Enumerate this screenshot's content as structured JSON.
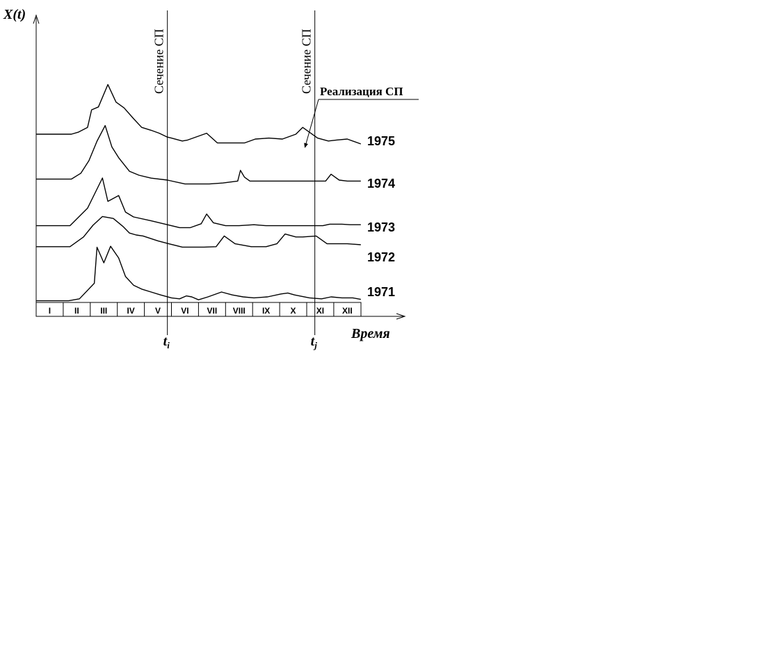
{
  "chart_data": {
    "type": "line",
    "y_axis_label": "X(t)",
    "x_axis_label": "Время",
    "months": [
      "I",
      "II",
      "III",
      "IV",
      "V",
      "VI",
      "VII",
      "VIII",
      "IX",
      "X",
      "XI",
      "XII"
    ],
    "sections": [
      {
        "label": "Сечение СП",
        "time_label_main": "t",
        "time_label_sub": "i",
        "month": 4.85
      },
      {
        "label": "Сечение СП",
        "time_label_main": "t",
        "time_label_sub": "j",
        "month": 10.3
      }
    ],
    "realization_label": "Реализация СП",
    "series": [
      {
        "name": "1975",
        "points": [
          [
            0,
            0.75
          ],
          [
            1.3,
            0.75
          ],
          [
            1.55,
            0.85
          ],
          [
            1.9,
            1.1
          ],
          [
            2.05,
            2.0
          ],
          [
            2.3,
            2.15
          ],
          [
            2.65,
            3.3
          ],
          [
            2.95,
            2.4
          ],
          [
            3.25,
            2.1
          ],
          [
            3.6,
            1.55
          ],
          [
            3.9,
            1.1
          ],
          [
            4.25,
            0.95
          ],
          [
            4.55,
            0.8
          ],
          [
            4.85,
            0.6
          ],
          [
            5.0,
            0.55
          ],
          [
            5.4,
            0.4
          ],
          [
            5.6,
            0.45
          ],
          [
            6.3,
            0.8
          ],
          [
            6.7,
            0.3
          ],
          [
            7.7,
            0.3
          ],
          [
            8.1,
            0.5
          ],
          [
            8.6,
            0.55
          ],
          [
            9.1,
            0.5
          ],
          [
            9.6,
            0.75
          ],
          [
            9.85,
            1.1
          ],
          [
            10.4,
            0.55
          ],
          [
            10.8,
            0.4
          ],
          [
            11.1,
            0.45
          ],
          [
            11.5,
            0.5
          ],
          [
            12,
            0.25
          ]
        ]
      },
      {
        "name": "1974",
        "points": [
          [
            0,
            0.55
          ],
          [
            1.3,
            0.55
          ],
          [
            1.65,
            0.85
          ],
          [
            1.95,
            1.5
          ],
          [
            2.25,
            2.5
          ],
          [
            2.55,
            3.3
          ],
          [
            2.8,
            2.2
          ],
          [
            3.05,
            1.65
          ],
          [
            3.45,
            0.95
          ],
          [
            3.8,
            0.75
          ],
          [
            4.25,
            0.6
          ],
          [
            4.85,
            0.5
          ],
          [
            5.5,
            0.3
          ],
          [
            6.4,
            0.3
          ],
          [
            6.9,
            0.35
          ],
          [
            7.45,
            0.45
          ],
          [
            7.55,
            1.0
          ],
          [
            7.7,
            0.65
          ],
          [
            7.9,
            0.45
          ],
          [
            10.7,
            0.45
          ],
          [
            10.9,
            0.8
          ],
          [
            11.2,
            0.5
          ],
          [
            11.5,
            0.45
          ],
          [
            12,
            0.45
          ]
        ]
      },
      {
        "name": "1973",
        "points": [
          [
            0,
            0.3
          ],
          [
            1.25,
            0.3
          ],
          [
            1.9,
            1.2
          ],
          [
            2.45,
            2.75
          ],
          [
            2.65,
            1.55
          ],
          [
            3.05,
            1.85
          ],
          [
            3.3,
            1.0
          ],
          [
            3.6,
            0.75
          ],
          [
            4.25,
            0.55
          ],
          [
            4.85,
            0.35
          ],
          [
            5.3,
            0.2
          ],
          [
            5.7,
            0.2
          ],
          [
            6.1,
            0.4
          ],
          [
            6.3,
            0.9
          ],
          [
            6.55,
            0.45
          ],
          [
            7.0,
            0.3
          ],
          [
            7.5,
            0.3
          ],
          [
            8.05,
            0.35
          ],
          [
            8.5,
            0.3
          ],
          [
            9.0,
            0.3
          ],
          [
            10.6,
            0.3
          ],
          [
            10.85,
            0.38
          ],
          [
            11.3,
            0.38
          ],
          [
            11.6,
            0.35
          ],
          [
            12,
            0.35
          ]
        ]
      },
      {
        "name": "1972",
        "points": [
          [
            0,
            0.4
          ],
          [
            1.25,
            0.4
          ],
          [
            1.75,
            0.9
          ],
          [
            2.1,
            1.5
          ],
          [
            2.45,
            1.95
          ],
          [
            2.85,
            1.85
          ],
          [
            3.2,
            1.45
          ],
          [
            3.45,
            1.1
          ],
          [
            3.7,
            1.0
          ],
          [
            3.95,
            0.95
          ],
          [
            4.5,
            0.7
          ],
          [
            4.9,
            0.55
          ],
          [
            5.4,
            0.38
          ],
          [
            6.2,
            0.38
          ],
          [
            6.65,
            0.4
          ],
          [
            6.95,
            0.95
          ],
          [
            7.35,
            0.55
          ],
          [
            7.95,
            0.4
          ],
          [
            8.5,
            0.4
          ],
          [
            8.9,
            0.55
          ],
          [
            9.2,
            1.05
          ],
          [
            9.6,
            0.9
          ],
          [
            9.85,
            0.9
          ],
          [
            10.35,
            0.95
          ],
          [
            10.75,
            0.55
          ],
          [
            11.1,
            0.55
          ],
          [
            11.5,
            0.55
          ],
          [
            12,
            0.5
          ]
        ]
      },
      {
        "name": "1971",
        "points": [
          [
            0,
            0.05
          ],
          [
            1.2,
            0.05
          ],
          [
            1.6,
            0.15
          ],
          [
            2.15,
            0.95
          ],
          [
            2.25,
            2.8
          ],
          [
            2.5,
            2.0
          ],
          [
            2.75,
            2.85
          ],
          [
            3.05,
            2.25
          ],
          [
            3.3,
            1.3
          ],
          [
            3.6,
            0.85
          ],
          [
            3.9,
            0.65
          ],
          [
            4.25,
            0.5
          ],
          [
            4.6,
            0.35
          ],
          [
            5.0,
            0.2
          ],
          [
            5.3,
            0.15
          ],
          [
            5.55,
            0.3
          ],
          [
            5.75,
            0.25
          ],
          [
            6.0,
            0.1
          ],
          [
            6.35,
            0.25
          ],
          [
            6.85,
            0.5
          ],
          [
            7.25,
            0.35
          ],
          [
            7.65,
            0.25
          ],
          [
            8.05,
            0.2
          ],
          [
            8.55,
            0.25
          ],
          [
            9.05,
            0.4
          ],
          [
            9.3,
            0.45
          ],
          [
            9.55,
            0.35
          ],
          [
            10.1,
            0.2
          ],
          [
            10.55,
            0.15
          ],
          [
            10.9,
            0.25
          ],
          [
            11.3,
            0.2
          ],
          [
            11.7,
            0.2
          ],
          [
            12,
            0.12
          ]
        ]
      }
    ]
  }
}
